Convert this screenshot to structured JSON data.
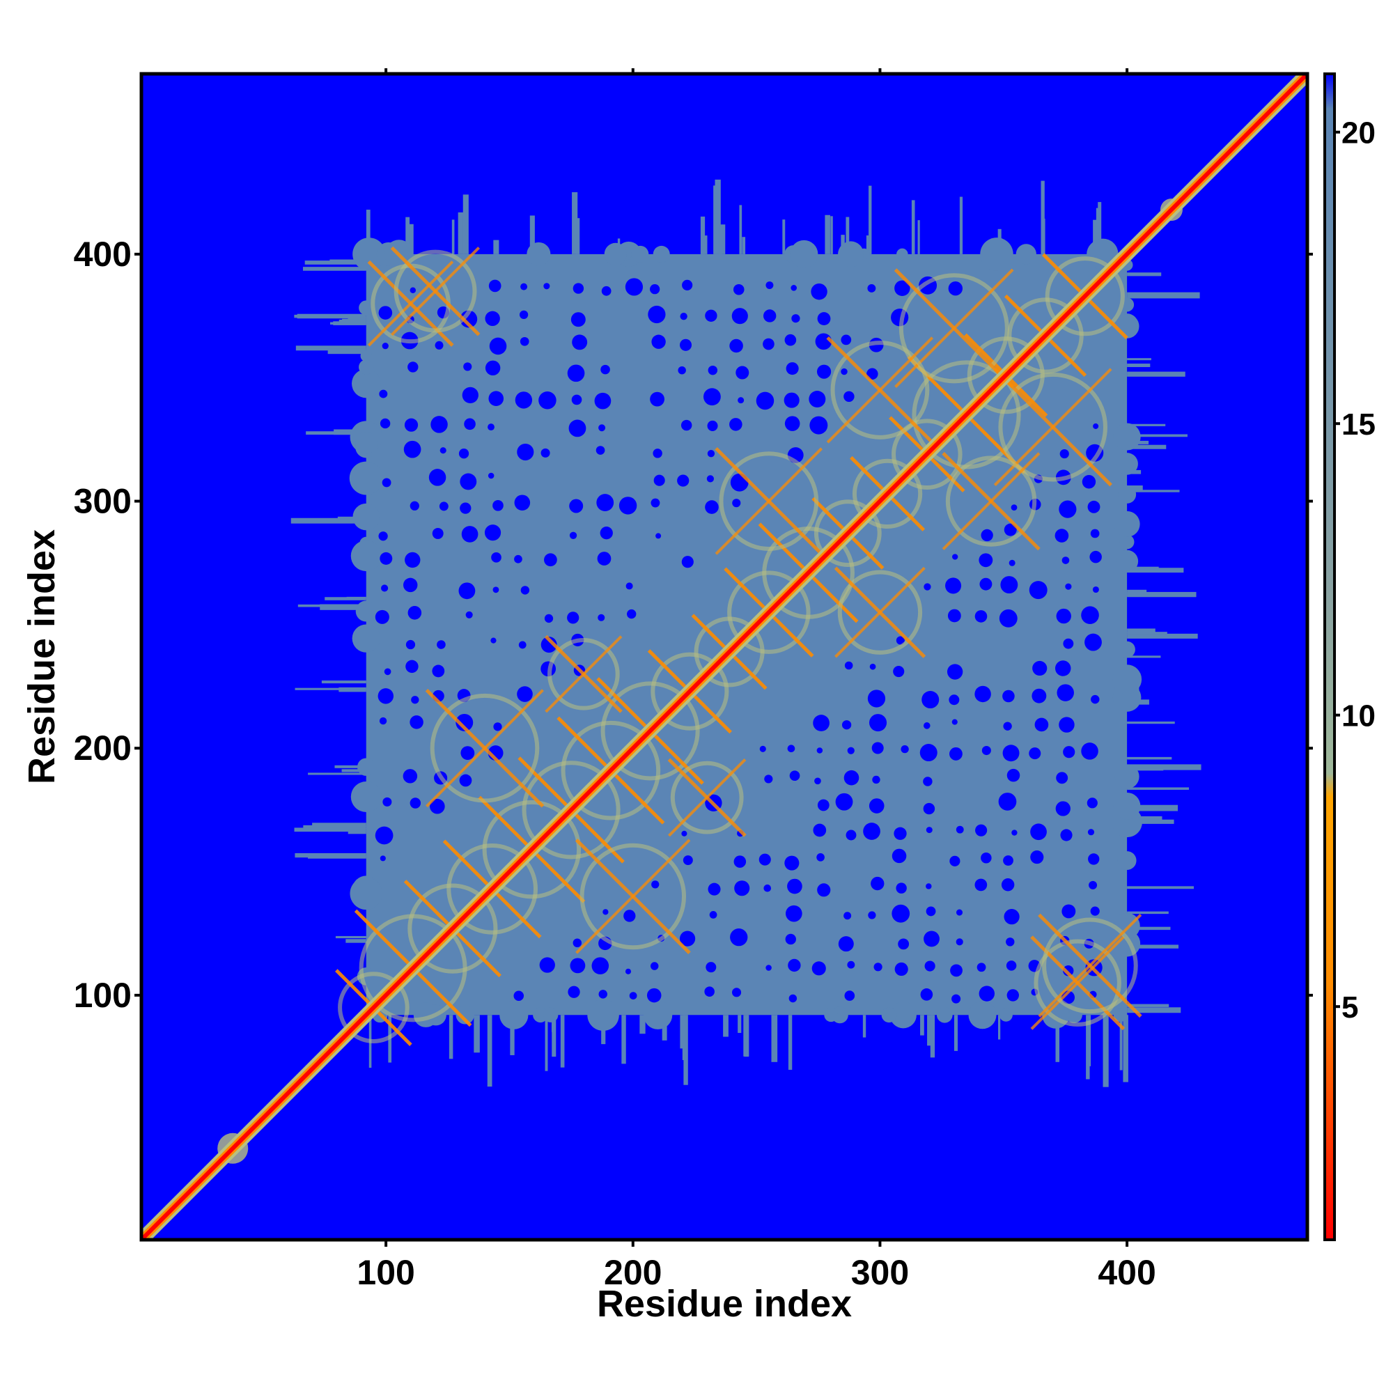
{
  "chart_data": {
    "type": "heatmap",
    "title": "",
    "xlabel": "Residue index",
    "ylabel": "Residue index",
    "xlim": [
      1,
      473
    ],
    "ylim": [
      1,
      473
    ],
    "x_ticks": [
      100,
      200,
      300,
      400
    ],
    "y_ticks": [
      100,
      200,
      300,
      400
    ],
    "colorbar": {
      "ticks": [
        5,
        10,
        15,
        20
      ],
      "range": [
        1,
        21
      ],
      "colors": {
        "low": "#ff0000",
        "mid_low": "#ff8c00",
        "mid": "#9fb89a",
        "high": "#5b85b5",
        "max": "#0000ff"
      }
    },
    "colors": {
      "background": "#0000ff",
      "contact_region": "#5b85b5",
      "diagonal": "#ff0000",
      "near_contacts": "#ff8c00",
      "medium_contacts": "#b8c080"
    },
    "contact_block": {
      "x_range": [
        92,
        400
      ],
      "y_range": [
        92,
        400
      ]
    },
    "diagonal": {
      "from": 1,
      "to": 473
    }
  }
}
